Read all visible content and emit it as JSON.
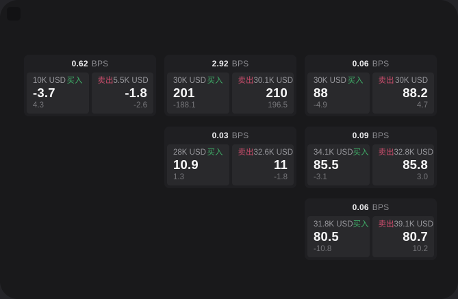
{
  "labels": {
    "unit": "BPS",
    "buy": "买入",
    "sell": "卖出"
  },
  "colors": {
    "buy_green": "#3fae68",
    "sell_red": "#d14e6e",
    "window_bg": "#19191b",
    "card_bg": "#1f1f22",
    "panel_bg": "#29292c"
  },
  "cards": [
    {
      "col": 1,
      "row": 1,
      "bps": "0.62",
      "buy": {
        "amount": "10K USD",
        "main": "-3.7",
        "sub": "4.3"
      },
      "sell": {
        "amount": "5.5K USD",
        "main": "-1.8",
        "sub": "-2.6"
      }
    },
    {
      "col": 2,
      "row": 1,
      "bps": "2.92",
      "buy": {
        "amount": "30K USD",
        "main": "201",
        "sub": "-188.1"
      },
      "sell": {
        "amount": "30.1K USD",
        "main": "210",
        "sub": "196.5"
      }
    },
    {
      "col": 2,
      "row": 2,
      "bps": "0.03",
      "buy": {
        "amount": "28K USD",
        "main": "10.9",
        "sub": "1.3"
      },
      "sell": {
        "amount": "32.6K USD",
        "main": "11",
        "sub": "-1.8"
      }
    },
    {
      "col": 3,
      "row": 1,
      "bps": "0.06",
      "buy": {
        "amount": "30K USD",
        "main": "88",
        "sub": "-4.9"
      },
      "sell": {
        "amount": "30K USD",
        "main": "88.2",
        "sub": "4.7"
      }
    },
    {
      "col": 3,
      "row": 2,
      "bps": "0.09",
      "buy": {
        "amount": "34.1K USD",
        "main": "85.5",
        "sub": "-3.1"
      },
      "sell": {
        "amount": "32.8K USD",
        "main": "85.8",
        "sub": "3.0"
      }
    },
    {
      "col": 3,
      "row": 3,
      "bps": "0.06",
      "buy": {
        "amount": "31.8K USD",
        "main": "80.5",
        "sub": "-10.8"
      },
      "sell": {
        "amount": "39.1K USD",
        "main": "80.7",
        "sub": "10.2"
      }
    }
  ]
}
